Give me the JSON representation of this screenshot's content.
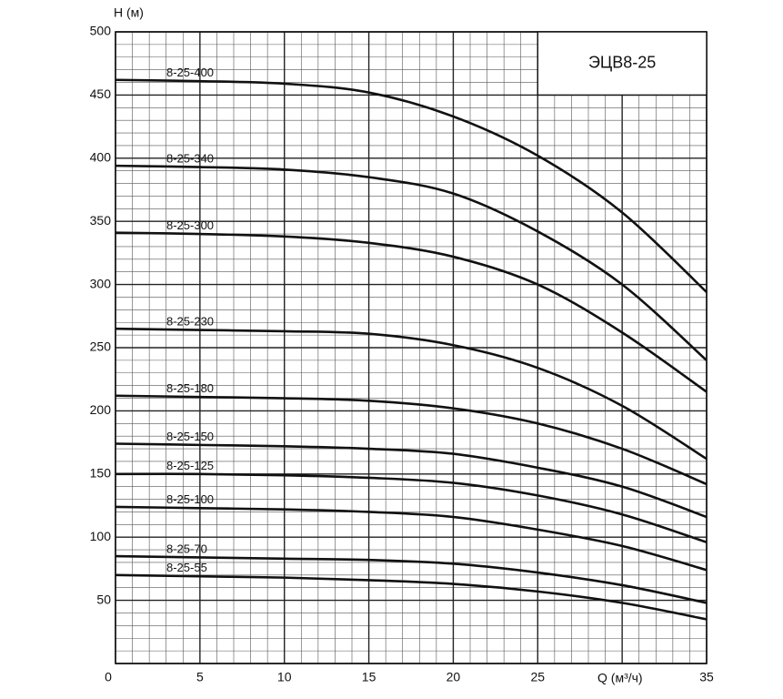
{
  "chart_data": {
    "type": "line",
    "title": "ЭЦВ8-25",
    "ylabel": "H (м)",
    "xlabel": "Q (м³/ч)",
    "x": [
      0,
      5,
      10,
      15,
      20,
      25,
      30,
      35
    ],
    "xlim": [
      0,
      35
    ],
    "xticks": [
      0,
      5,
      10,
      15,
      20,
      25,
      35
    ],
    "ylim": [
      0,
      500
    ],
    "yticks": [
      50,
      100,
      150,
      200,
      250,
      300,
      350,
      400,
      450,
      500
    ],
    "grid": true,
    "series": [
      {
        "name": "8-25-400",
        "color": "#111111",
        "values": [
          462,
          461,
          459,
          452,
          433,
          402,
          357,
          294
        ]
      },
      {
        "name": "8-25-340",
        "color": "#111111",
        "values": [
          394,
          393,
          391,
          385,
          372,
          342,
          300,
          240
        ]
      },
      {
        "name": "8-25-300",
        "color": "#111111",
        "values": [
          341,
          340,
          338,
          333,
          322,
          300,
          262,
          215
        ]
      },
      {
        "name": "8-25-230",
        "color": "#111111",
        "values": [
          265,
          264,
          263,
          261,
          252,
          234,
          204,
          162
        ]
      },
      {
        "name": "8-25-180",
        "color": "#111111",
        "values": [
          212,
          211,
          210,
          208,
          202,
          190,
          170,
          142
        ]
      },
      {
        "name": "8-25-150",
        "color": "#111111",
        "values": [
          174,
          173,
          172,
          170,
          166,
          155,
          140,
          116
        ]
      },
      {
        "name": "8-25-125",
        "color": "#111111",
        "values": [
          150,
          150,
          149,
          147,
          143,
          133,
          118,
          96
        ]
      },
      {
        "name": "8-25-100",
        "color": "#111111",
        "values": [
          124,
          123,
          122,
          120,
          116,
          106,
          93,
          74
        ]
      },
      {
        "name": "8-25-70",
        "color": "#111111",
        "values": [
          85,
          84,
          83,
          82,
          79,
          72,
          62,
          48
        ]
      },
      {
        "name": "8-25-55",
        "color": "#111111",
        "values": [
          70,
          69,
          68,
          66,
          63,
          57,
          48,
          35
        ]
      }
    ]
  }
}
